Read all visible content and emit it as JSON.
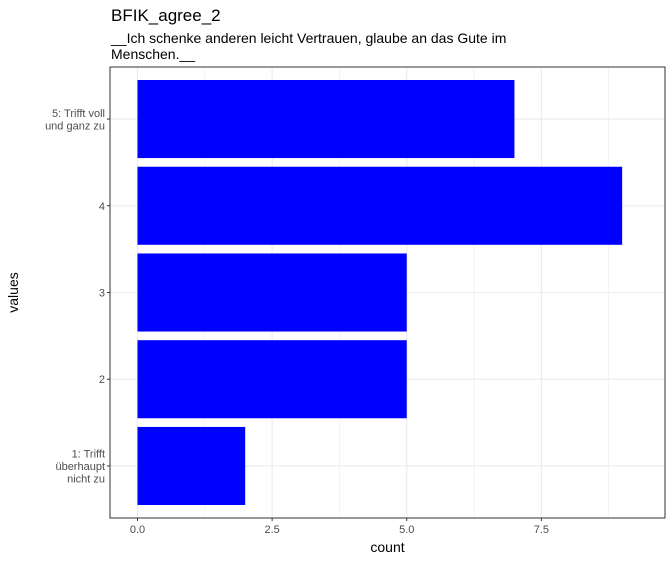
{
  "chart_data": {
    "type": "bar",
    "orientation": "horizontal",
    "title": "BFIK_agree_2",
    "subtitle": "__Ich schenke anderen leicht Vertrauen, glaube an das Gute im Menschen.__",
    "xlabel": "count",
    "ylabel": "values",
    "categories": [
      "1: Trifft überhaupt nicht zu",
      "2",
      "3",
      "4",
      "5: Trifft voll und ganz zu"
    ],
    "values": [
      2,
      5,
      5,
      9,
      7
    ],
    "xlim": [
      0,
      9.45
    ],
    "xticks": [
      "0.0",
      "2.5",
      "5.0",
      "7.5"
    ],
    "xtick_values": [
      0,
      2.5,
      5,
      7.5
    ],
    "bar_color": "#0000ff",
    "grid": true,
    "theme": "bw"
  }
}
